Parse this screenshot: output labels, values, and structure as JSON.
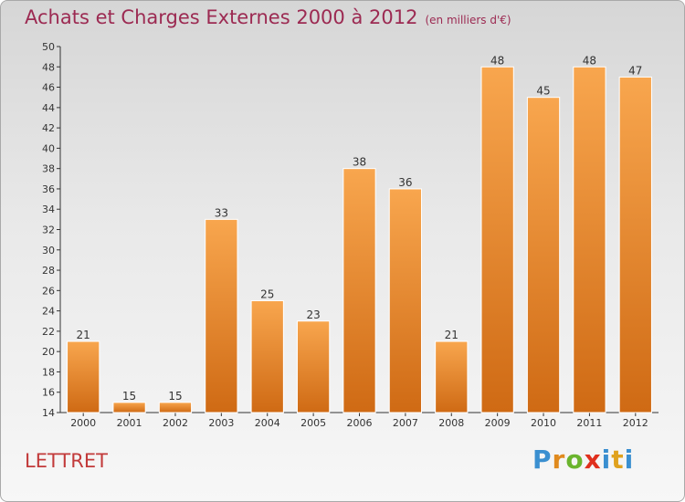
{
  "title": "Achats et Charges Externes 2000 à 2012",
  "subtitle": "(en milliers d'€)",
  "commune": "LETTRET",
  "logo": {
    "letters": [
      "P",
      "r",
      "o",
      "x",
      "i",
      "t",
      "i"
    ],
    "colors": [
      "#3a8fd0",
      "#e08a1e",
      "#6ab42d",
      "#e0301e",
      "#3a8fd0",
      "#e0a21e",
      "#3a8fd0"
    ]
  },
  "colors": {
    "bar_light": "#f8a64e",
    "bar_dark": "#cf6a14",
    "axis": "#333333",
    "grid": "#d0d0d0"
  },
  "chart_data": {
    "type": "bar",
    "categories": [
      "2000",
      "2001",
      "2002",
      "2003",
      "2004",
      "2005",
      "2006",
      "2007",
      "2008",
      "2009",
      "2010",
      "2011",
      "2012"
    ],
    "values": [
      21,
      15,
      15,
      33,
      25,
      23,
      38,
      36,
      21,
      48,
      45,
      48,
      47
    ],
    "ylim": [
      14,
      50
    ],
    "yticks": [
      14,
      16,
      18,
      20,
      22,
      24,
      26,
      28,
      30,
      32,
      34,
      36,
      38,
      40,
      42,
      44,
      46,
      48,
      50
    ],
    "grid": false
  }
}
